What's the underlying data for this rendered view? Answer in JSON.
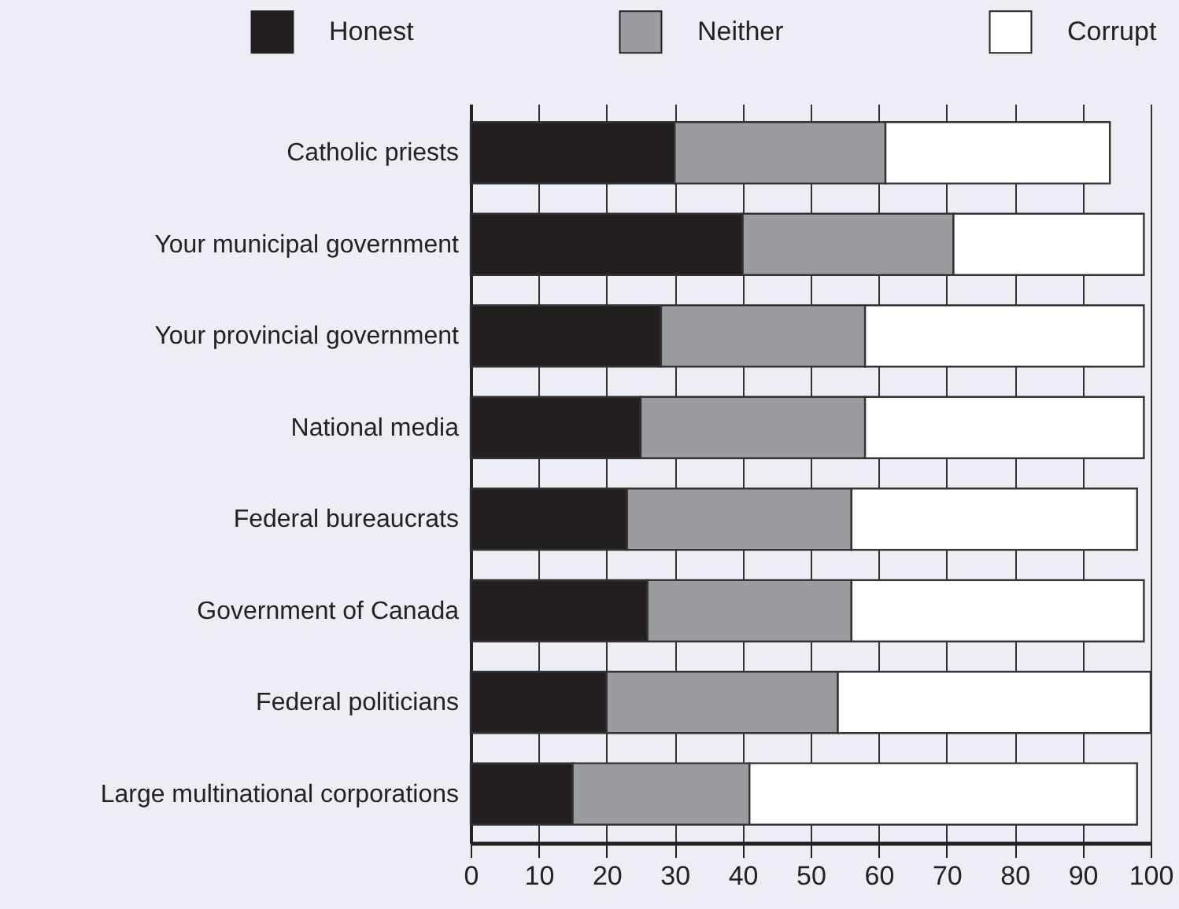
{
  "chart_data": {
    "type": "bar",
    "orientation": "horizontal",
    "stacked": true,
    "categories": [
      "Catholic priests",
      "Your municipal government",
      "Your provincial government",
      "National media",
      "Federal bureaucrats",
      "Government of Canada",
      "Federal politicians",
      "Large multinational corporations"
    ],
    "series": [
      {
        "name": "Honest",
        "color": "#231f20",
        "values": [
          30,
          40,
          28,
          25,
          23,
          26,
          20,
          15
        ]
      },
      {
        "name": "Neither",
        "color": "#9b9c9f",
        "values": [
          31,
          31,
          30,
          33,
          33,
          30,
          34,
          26
        ]
      },
      {
        "name": "Corrupt",
        "color": "#ffffff",
        "values": [
          33,
          28,
          41,
          41,
          42,
          43,
          46,
          57
        ]
      }
    ],
    "xlim": [
      0,
      100
    ],
    "xticks": [
      0,
      10,
      20,
      30,
      40,
      50,
      60,
      70,
      80,
      90,
      100
    ],
    "grid": "x",
    "legend": "top"
  }
}
